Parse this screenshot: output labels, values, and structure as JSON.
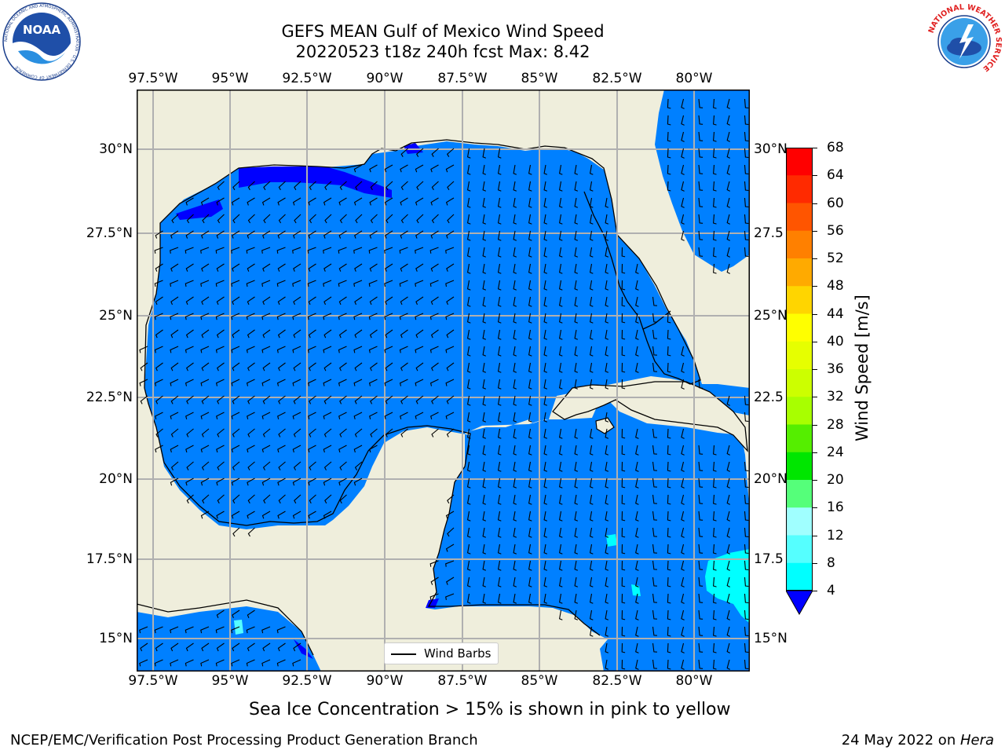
{
  "header": {
    "title_line1": "GEFS MEAN Gulf of Mexico Wind Speed",
    "title_line2": "20220523 t18z 240h fcst   Max: 8.42"
  },
  "axes": {
    "lon_labels": [
      "97.5°W",
      "95°W",
      "92.5°W",
      "90°W",
      "87.5°W",
      "85°W",
      "82.5°W",
      "80°W"
    ],
    "lat_labels_left": [
      "30°N",
      "27.5°N",
      "25°N",
      "22.5°N",
      "20°N",
      "17.5°N",
      "15°N"
    ],
    "lat_labels_right": [
      "30°N",
      "27.5",
      "25°N",
      "22.5",
      "20°N",
      "17.5",
      "15°N"
    ]
  },
  "map": {
    "lon_range": [
      -98,
      -78.2
    ],
    "lat_range": [
      14,
      31.8
    ],
    "grid": true,
    "land_color": "#efeedc",
    "ocean_fill_color": "#0080ff"
  },
  "colorbar": {
    "label": "Wind Speed [m/s]",
    "ticks": [
      "68",
      "64",
      "60",
      "56",
      "52",
      "48",
      "44",
      "40",
      "36",
      "32",
      "28",
      "24",
      "20",
      "16",
      "12",
      "8",
      "4"
    ],
    "colors": [
      "#ff0000",
      "#ff2a00",
      "#ff5500",
      "#ff8000",
      "#ffaa00",
      "#ffd500",
      "#ffff00",
      "#e6ff00",
      "#ccff00",
      "#a8ff00",
      "#55ee00",
      "#00e600",
      "#55ff7a",
      "#a0ffff",
      "#55ffff",
      "#00ffff",
      "#0080ff"
    ],
    "under_color": "#0000ff"
  },
  "legend": {
    "label": "Wind Barbs"
  },
  "note": "Sea Ice Concentration > 15% is shown in pink to yellow",
  "footer": {
    "left": "NCEP/EMC/Verification Post Processing Product Generation Branch",
    "date": "24 May 2022 on ",
    "machine": "Hera"
  },
  "logos": {
    "left": {
      "text": "NOAA",
      "ring_text": "NATIONAL OCEANIC AND ATMOSPHERIC ADMINISTRATION · U.S. DEPARTMENT OF COMMERCE"
    },
    "right": {
      "ring_text": "NATIONAL WEATHER SERVICE"
    }
  }
}
